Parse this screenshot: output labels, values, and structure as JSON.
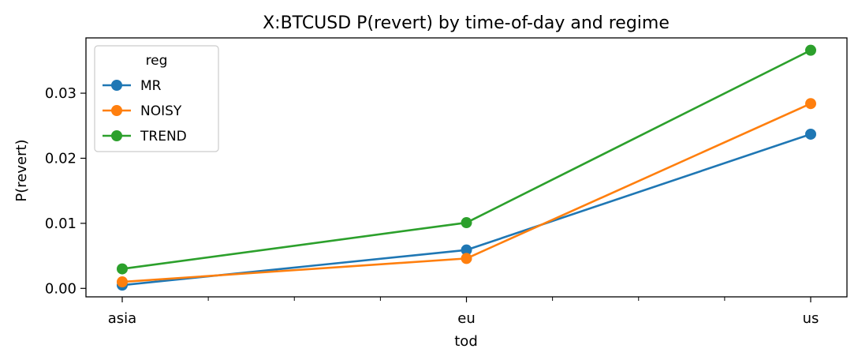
{
  "chart_data": {
    "type": "line",
    "title": "X:BTCUSD P(revert) by time-of-day and regime",
    "xlabel": "tod",
    "ylabel": "P(revert)",
    "categories": [
      "asia",
      "eu",
      "us"
    ],
    "ylim": [
      -0.0013,
      0.0385
    ],
    "yticks": [
      "0.00",
      "0.01",
      "0.02",
      "0.03"
    ],
    "ytick_values": [
      0.0,
      0.01,
      0.02,
      0.03
    ],
    "grid": false,
    "legend": {
      "title": "reg",
      "placement": "top-left"
    },
    "series": [
      {
        "name": "MR",
        "color": "#1f77b4",
        "values": [
          0.0005,
          0.0059,
          0.0237
        ]
      },
      {
        "name": "NOISY",
        "color": "#ff7f0e",
        "values": [
          0.001,
          0.0046,
          0.0284
        ]
      },
      {
        "name": "TREND",
        "color": "#2ca02c",
        "values": [
          0.003,
          0.0101,
          0.0366
        ]
      }
    ]
  }
}
